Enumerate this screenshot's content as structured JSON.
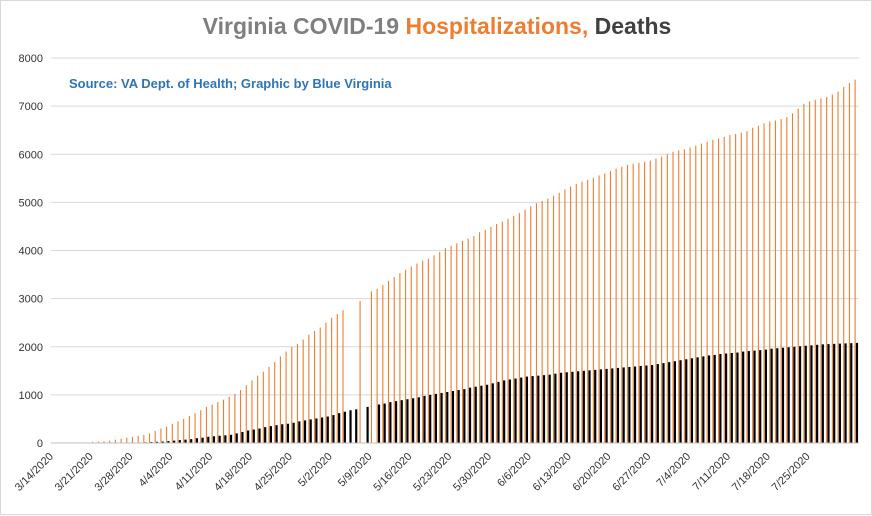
{
  "title": {
    "part1": "Virginia COVID-19 ",
    "part2": "Hospitalizations,",
    "part3": " Deaths"
  },
  "source": "Source: VA Dept. of Health; Graphic by Blue Virginia",
  "colors": {
    "hospitalizations": "#ed7d31",
    "deaths": "#000000",
    "gridline": "#d9d9d9",
    "title_gray": "#7f7f7f",
    "source_blue": "#2e75b6"
  },
  "chart_data": {
    "type": "bar",
    "start_date": "3/14/2020",
    "x_tick_labels": [
      "3/14/2020",
      "3/21/2020",
      "3/28/2020",
      "4/4/2020",
      "4/11/2020",
      "4/18/2020",
      "4/25/2020",
      "5/2/2020",
      "5/9/2020",
      "5/16/2020",
      "5/23/2020",
      "5/30/2020",
      "6/6/2020",
      "6/13/2020",
      "6/20/2020",
      "6/27/2020",
      "7/4/2020",
      "7/11/2020",
      "7/18/2020",
      "7/25/2020"
    ],
    "y_ticks": [
      0,
      1000,
      2000,
      3000,
      4000,
      5000,
      6000,
      7000,
      8000
    ],
    "ylim": [
      0,
      8000
    ],
    "grid": true,
    "legend": "none",
    "series": [
      {
        "name": "Hospitalizations",
        "values": [
          0,
          0,
          0,
          0,
          0,
          0,
          0,
          25,
          30,
          40,
          50,
          70,
          90,
          110,
          130,
          150,
          170,
          200,
          250,
          300,
          340,
          400,
          450,
          500,
          560,
          620,
          680,
          750,
          800,
          850,
          900,
          960,
          1020,
          1100,
          1200,
          1300,
          1400,
          1480,
          1580,
          1680,
          1800,
          1900,
          2000,
          2060,
          2150,
          2250,
          2330,
          2400,
          2500,
          2600,
          2680,
          2760,
          0,
          0,
          2950,
          0,
          3150,
          3200,
          3280,
          3370,
          3450,
          3530,
          3600,
          3670,
          3730,
          3790,
          3830,
          3900,
          3970,
          4050,
          4100,
          4150,
          4200,
          4250,
          4300,
          4380,
          4430,
          4490,
          4550,
          4600,
          4660,
          4720,
          4780,
          4850,
          4920,
          4980,
          5030,
          5080,
          5140,
          5200,
          5270,
          5330,
          5380,
          5430,
          5470,
          5510,
          5560,
          5600,
          5650,
          5700,
          5740,
          5780,
          5800,
          5820,
          5840,
          5870,
          5910,
          5950,
          6000,
          6050,
          6080,
          6100,
          6140,
          6180,
          6220,
          6260,
          6300,
          6330,
          6360,
          6400,
          6420,
          6450,
          6480,
          6550,
          6590,
          6640,
          6680,
          6700,
          6730,
          6770,
          6850,
          6950,
          7050,
          7100,
          7130,
          7160,
          7190,
          7240,
          7300,
          7400,
          7480,
          7550
        ]
      },
      {
        "name": "Deaths",
        "values": [
          0,
          0,
          0,
          0,
          0,
          0,
          0,
          2,
          2,
          3,
          3,
          4,
          6,
          8,
          10,
          12,
          15,
          20,
          25,
          30,
          40,
          50,
          60,
          70,
          80,
          100,
          110,
          130,
          140,
          150,
          160,
          170,
          200,
          230,
          260,
          280,
          300,
          330,
          350,
          370,
          390,
          400,
          420,
          450,
          470,
          490,
          510,
          530,
          550,
          580,
          620,
          650,
          680,
          700,
          0,
          750,
          0,
          800,
          820,
          850,
          870,
          890,
          910,
          930,
          950,
          980,
          1000,
          1020,
          1040,
          1060,
          1080,
          1100,
          1120,
          1150,
          1170,
          1190,
          1210,
          1240,
          1270,
          1300,
          1320,
          1340,
          1360,
          1380,
          1390,
          1400,
          1410,
          1420,
          1440,
          1460,
          1470,
          1480,
          1490,
          1500,
          1510,
          1520,
          1530,
          1540,
          1550,
          1560,
          1570,
          1580,
          1590,
          1600,
          1610,
          1620,
          1640,
          1660,
          1680,
          1700,
          1720,
          1740,
          1760,
          1780,
          1800,
          1820,
          1830,
          1850,
          1860,
          1870,
          1880,
          1900,
          1910,
          1920,
          1930,
          1940,
          1960,
          1970,
          1980,
          1990,
          2000,
          2010,
          2020,
          2030,
          2040,
          2050,
          2055,
          2060,
          2065,
          2070,
          2075,
          2080
        ]
      }
    ]
  }
}
